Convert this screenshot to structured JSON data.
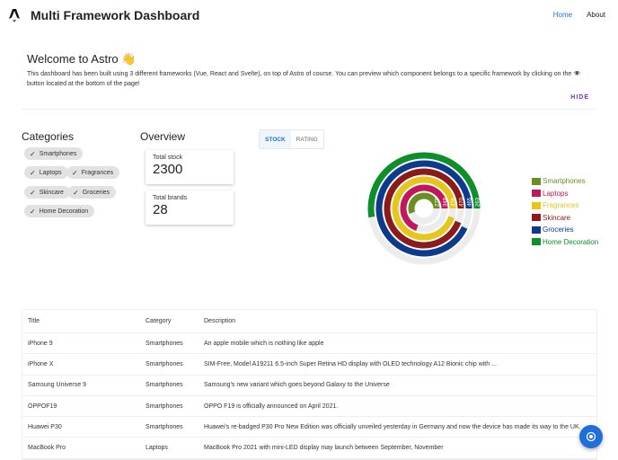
{
  "header": {
    "title": "Multi Framework Dashboard",
    "links": [
      "Home",
      "About"
    ]
  },
  "welcome": {
    "title": "Welcome to Astro 👋",
    "text": "This dashboard has been built using 3 different frameworks (Vue, React and Svelte), on top of Astro of course. You can preview which component belongs to a specific framework by clicking on the 👁️ button located at the bottom of the page!",
    "hide": "HIDE"
  },
  "categories": {
    "title": "Categories",
    "items": [
      "Smartphones",
      "Laptops",
      "Fragrances",
      "Skincare",
      "Groceries",
      "Home Decoration"
    ]
  },
  "overview": {
    "title": "Overview",
    "total_stock_label": "Total stock",
    "total_stock": "2300",
    "total_brands_label": "Total brands",
    "total_brands": "28"
  },
  "toggle": {
    "stock": "STOCK",
    "rating": "RATING",
    "selected": "STOCK"
  },
  "chart_data": {
    "type": "radial-bar",
    "categories": [
      "Smartphones",
      "Laptops",
      "Fragrances",
      "Skincare",
      "Groceries",
      "Home Decoration"
    ],
    "values": [
      278,
      348,
      476,
      470,
      465,
      263
    ],
    "colors": [
      "#6b8e23",
      "#c2185b",
      "#e6c619",
      "#8b1a1a",
      "#0d3a8c",
      "#0f8f2a"
    ],
    "legend": "right"
  },
  "table": {
    "headers": [
      "Title",
      "Category",
      "Description"
    ],
    "rows": [
      [
        "iPhone 9",
        "Smartphones",
        "An apple mobile which is nothing like apple"
      ],
      [
        "iPhone X",
        "Smartphones",
        "SIM-Free, Model A19211 6.5-inch Super Retina HD display with OLED technology A12 Bionic chip with ..."
      ],
      [
        "Samsung Universe 9",
        "Smartphones",
        "Samsung's new variant which goes beyond Galaxy to the Universe"
      ],
      [
        "OPPOF19",
        "Smartphones",
        "OPPO F19 is officially announced on April 2021."
      ],
      [
        "Huawei P30",
        "Smartphones",
        "Huawei’s re-badged P30 Pro New Edition was officially unveiled yesterday in Germany and now the device has made its way to the UK."
      ],
      [
        "MacBook Pro",
        "Laptops",
        "MacBook Pro 2021 with mini-LED display may launch between September, November"
      ]
    ]
  },
  "fab": {
    "icon": "eye-icon",
    "color": "#1e6fd9"
  }
}
